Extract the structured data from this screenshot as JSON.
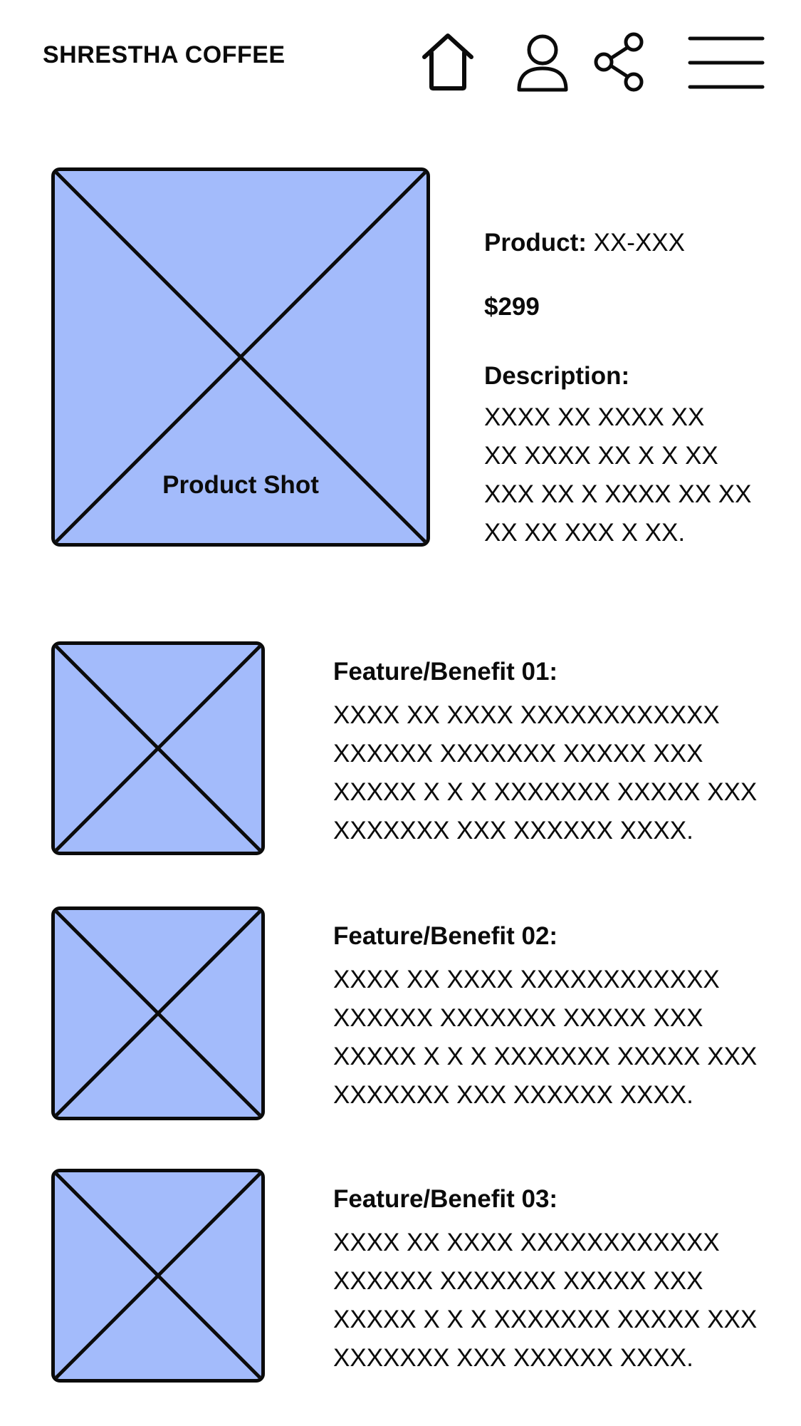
{
  "header": {
    "brand": "SHRESTHA COFFEE",
    "icons": [
      "home-icon",
      "user-icon",
      "share-icon",
      "menu-icon"
    ]
  },
  "hero": {
    "image_label": "Product Shot"
  },
  "product": {
    "name_label": "Product:",
    "name_value": " XX-XXX",
    "price": "$299",
    "description_label": "Description:",
    "description_text": "XXXX XX XXXX XX\nXX XXXX XX X X XX\nXXX XX X XXXX XX XX\nXX XX XXX X XX."
  },
  "features": [
    {
      "title": "Feature/Benefit 01:",
      "text": "XXXX XX XXXX XXXXXXXXXXXX\nXXXXXX XXXXXXX XXXXX XXX\nXXXXX X X X XXXXXXX XXXXX XXX\nXXXXXXX XXX XXXXXX XXXX."
    },
    {
      "title": "Feature/Benefit 02:",
      "text": "XXXX XX XXXX XXXXXXXXXXXX\nXXXXXX XXXXXXX XXXXX XXX\nXXXXX X X X XXXXXXX XXXXX XXX\nXXXXXXX XXX XXXXXX XXXX."
    },
    {
      "title": "Feature/Benefit 03:",
      "text": "XXXX XX XXXX XXXXXXXXXXXX\nXXXXXX XXXXXXX XXXXX XXX\nXXXXX X X X XXXXXXX XXXXX XXX\nXXXXXXX XXX XXXXXX XXXX."
    }
  ],
  "colors": {
    "placeholder_fill": "#a3bbfb",
    "stroke": "#0b0b0b",
    "background": "#ffffff"
  }
}
